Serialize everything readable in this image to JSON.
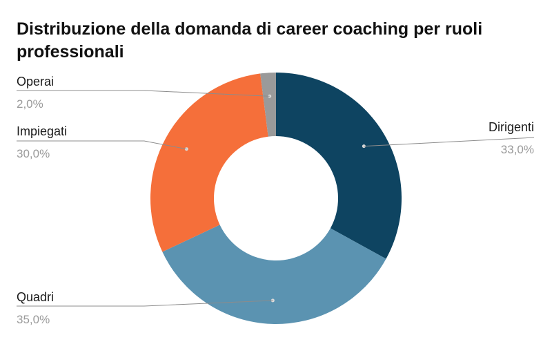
{
  "title": "Distribuzione della domanda di career coaching per ruoli professionali",
  "chart_data": {
    "type": "pie",
    "donut": true,
    "title": "Distribuzione della domanda di career coaching per ruoli professionali",
    "categories": [
      "Dirigenti",
      "Quadri",
      "Impiegati",
      "Operai"
    ],
    "values": [
      33.0,
      35.0,
      30.0,
      2.0
    ],
    "labels": [
      "33,0%",
      "35,0%",
      "30,0%",
      "2,0%"
    ],
    "colors": [
      "#0e4461",
      "#5b93b1",
      "#f56f3a",
      "#9a9a9a"
    ],
    "legend": "callout labels"
  }
}
